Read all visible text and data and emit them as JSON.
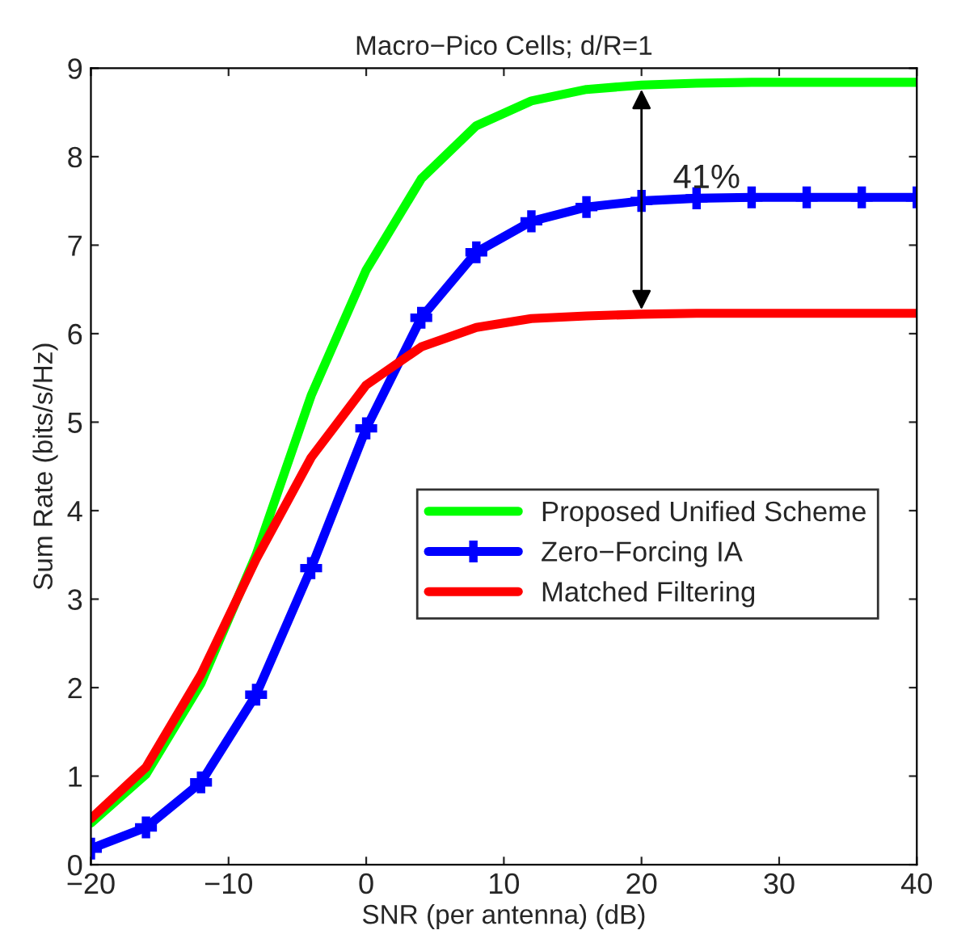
{
  "chart_data": {
    "type": "line",
    "title": "Macro−Pico Cells; d/R=1",
    "xlabel": "SNR (per antenna) (dB)",
    "ylabel": "Sum Rate (bits/s/Hz)",
    "x": [
      -20,
      -16,
      -12,
      -8,
      -4,
      0,
      4,
      8,
      12,
      16,
      20,
      24,
      28,
      32,
      36,
      40
    ],
    "series": [
      {
        "name": "Proposed Unified Scheme",
        "color": "#00ff00",
        "marker": "none",
        "values": [
          0.47,
          1.02,
          2.05,
          3.5,
          5.3,
          6.72,
          7.75,
          8.35,
          8.63,
          8.76,
          8.81,
          8.83,
          8.84,
          8.84,
          8.84,
          8.84
        ]
      },
      {
        "name": "Zero−Forcing IA",
        "color": "#0000ff",
        "marker": "cross",
        "values": [
          0.18,
          0.42,
          0.93,
          1.92,
          3.35,
          4.93,
          6.18,
          6.92,
          7.27,
          7.43,
          7.5,
          7.53,
          7.54,
          7.54,
          7.54,
          7.54
        ]
      },
      {
        "name": "Matched Filtering",
        "color": "#ff0000",
        "marker": "none",
        "values": [
          0.52,
          1.1,
          2.15,
          3.45,
          4.6,
          5.42,
          5.85,
          6.07,
          6.17,
          6.2,
          6.22,
          6.23,
          6.23,
          6.23,
          6.23,
          6.23
        ]
      }
    ],
    "annotations": [
      {
        "text": "41%",
        "x": 20,
        "y": 8.81
      }
    ],
    "xlim": [
      -20,
      40
    ],
    "xticks": [
      {
        "value": -20,
        "label": "−20"
      },
      {
        "value": -10,
        "label": "−10"
      },
      0,
      10,
      20,
      30,
      40
    ],
    "ylim": [
      0,
      9
    ],
    "yticks": [
      0,
      1,
      2,
      3,
      4,
      5,
      6,
      7,
      8,
      9
    ],
    "grid": false,
    "legend": "center right",
    "line_style": "solid"
  }
}
